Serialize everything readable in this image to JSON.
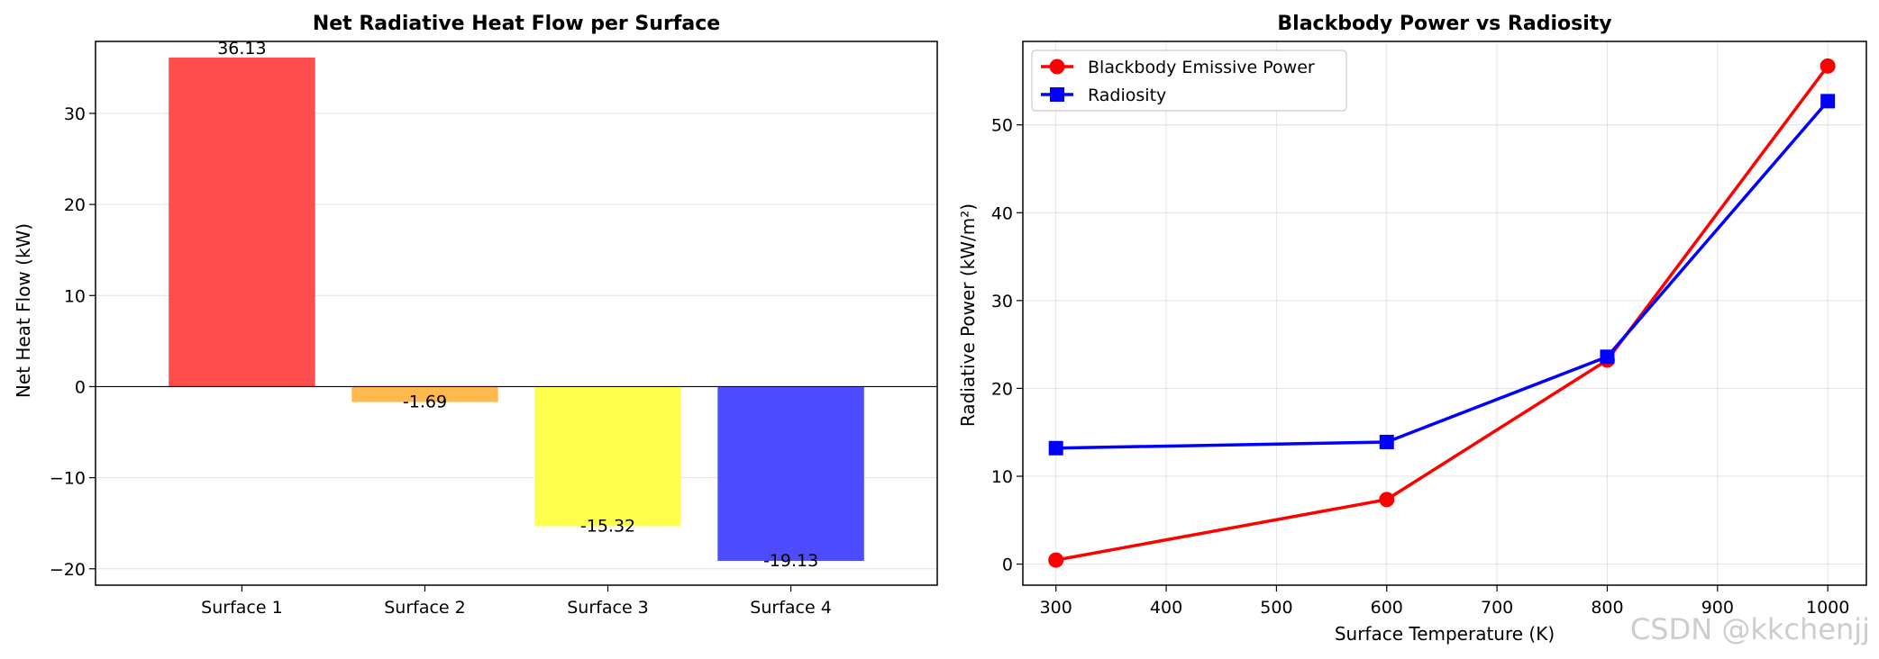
{
  "watermark": "CSDN @kkchenjj",
  "chart_data": [
    {
      "type": "bar",
      "title": "Net Radiative Heat Flow per Surface",
      "xlabel": "",
      "ylabel": "Net Heat Flow (kW)",
      "categories": [
        "Surface 1",
        "Surface 2",
        "Surface 3",
        "Surface 4"
      ],
      "values": [
        36.13,
        -1.69,
        -15.32,
        -19.13
      ],
      "data_labels": [
        "36.13",
        "-1.69",
        "-15.32",
        "-19.13"
      ],
      "bar_colors": [
        "#ff4d4d",
        "#ffb84d",
        "#ffff4d",
        "#4d4dff"
      ],
      "ylim": [
        -21.8,
        37.9
      ],
      "yticks": [
        -20,
        -10,
        0,
        10,
        20,
        30
      ],
      "ytick_labels": [
        "−20",
        "−10",
        "0",
        "10",
        "20",
        "30"
      ],
      "grid": "y",
      "zero_line": true
    },
    {
      "type": "line",
      "title": "Blackbody Power vs Radiosity",
      "xlabel": "Surface Temperature (K)",
      "ylabel": "Radiative Power (kW/m²)",
      "x": [
        300,
        600,
        800,
        1000
      ],
      "series": [
        {
          "name": "Blackbody Emissive Power",
          "values": [
            0.46,
            7.35,
            23.22,
            56.7
          ],
          "color": "#ff0000",
          "marker": "circle"
        },
        {
          "name": "Radiosity",
          "values": [
            13.2,
            13.9,
            23.6,
            52.7
          ],
          "color": "#0000ff",
          "marker": "square"
        }
      ],
      "xlim": [
        270,
        1035
      ],
      "ylim": [
        -2.4,
        59.5
      ],
      "xticks": [
        300,
        400,
        500,
        600,
        700,
        800,
        900,
        1000
      ],
      "xtick_labels": [
        "300",
        "400",
        "500",
        "600",
        "700",
        "800",
        "900",
        "1000"
      ],
      "yticks": [
        0,
        10,
        20,
        30,
        40,
        50
      ],
      "ytick_labels": [
        "0",
        "10",
        "20",
        "30",
        "40",
        "50"
      ],
      "grid": "both",
      "legend": "upper-left"
    }
  ]
}
